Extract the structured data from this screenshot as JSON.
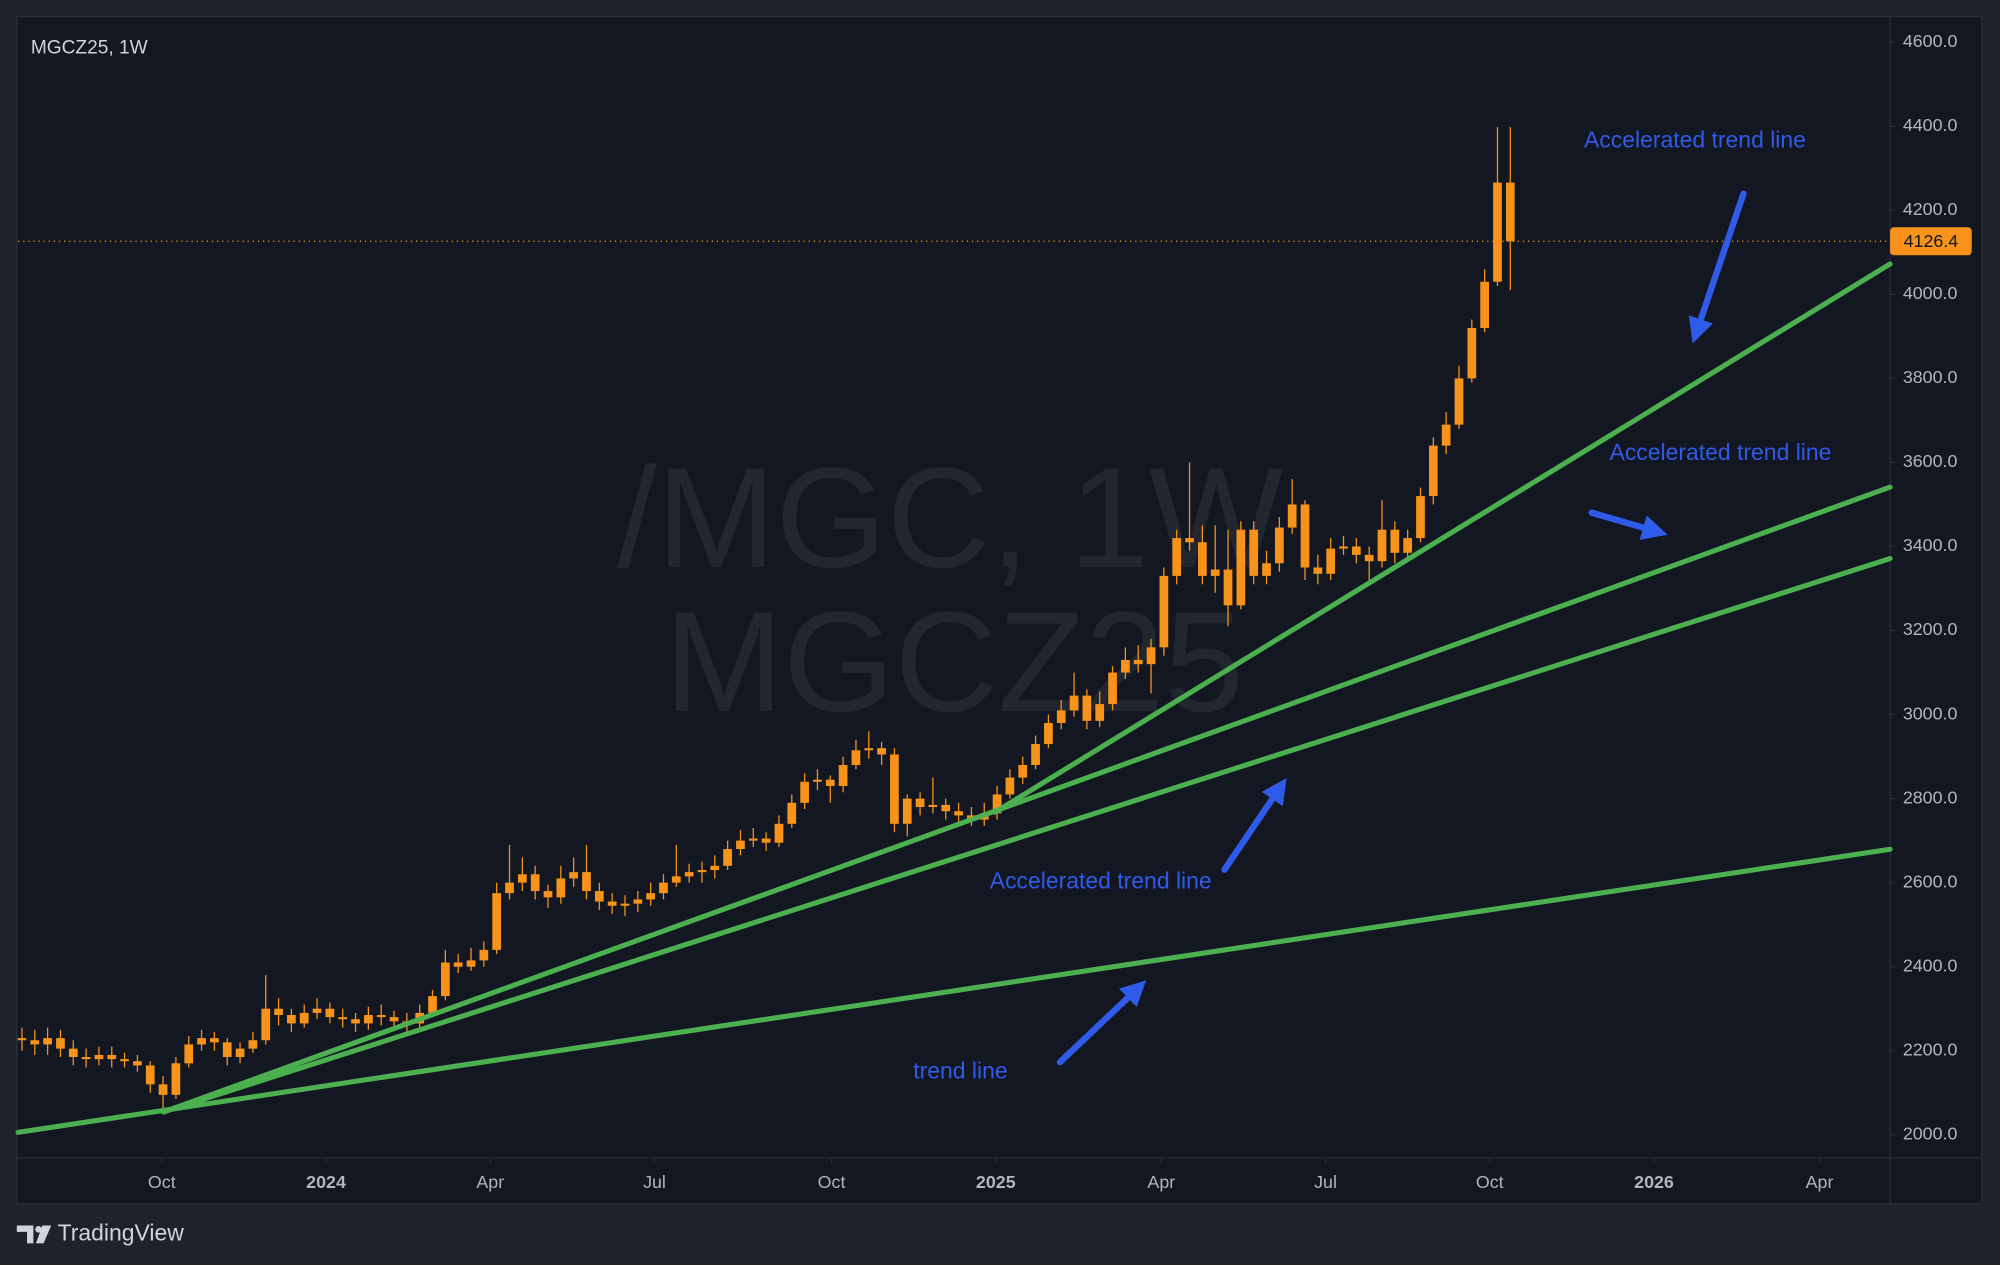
{
  "chart_data": {
    "type": "candlestick",
    "title": "MGCZ25, 1W",
    "watermark": [
      "/MGC, 1W",
      "MGCZ25"
    ],
    "color": "#f7931a",
    "open": [
      2230,
      2225,
      2215,
      2230,
      2205,
      2185,
      2180,
      2190,
      2180,
      2175,
      2165,
      2120,
      2095,
      2170,
      2215,
      2230,
      2220,
      2185,
      2205,
      2225,
      2300,
      2285,
      2265,
      2290,
      2300,
      2280,
      2275,
      2265,
      2285,
      2280,
      2270,
      2265,
      2290,
      2330,
      2410,
      2400,
      2415,
      2440,
      2575,
      2600,
      2620,
      2580,
      2565,
      2610,
      2625,
      2580,
      2555,
      2545,
      2550,
      2560,
      2575,
      2600,
      2615,
      2625,
      2630,
      2640,
      2680,
      2700,
      2705,
      2695,
      2740,
      2790,
      2840,
      2845,
      2830,
      2880,
      2915,
      2920,
      2905,
      2740,
      2800,
      2780,
      2785,
      2770,
      2760,
      2750,
      2765,
      2810,
      2850,
      2880,
      2930,
      2980,
      3010,
      3045,
      2985,
      3025,
      3100,
      3130,
      3120,
      3160,
      3330,
      3420,
      3410,
      3330,
      3345,
      3260,
      3440,
      3330,
      3360,
      3445,
      3500,
      3350,
      3335,
      3395,
      3400,
      3380,
      3365,
      3440,
      3385,
      3420,
      3520,
      3640,
      3690,
      3800,
      3920,
      4030,
      4266
    ],
    "high": [
      2255,
      2250,
      2255,
      2250,
      2225,
      2205,
      2210,
      2210,
      2195,
      2190,
      2175,
      2140,
      2185,
      2235,
      2250,
      2245,
      2230,
      2220,
      2245,
      2380,
      2325,
      2300,
      2310,
      2325,
      2315,
      2300,
      2290,
      2305,
      2310,
      2295,
      2290,
      2310,
      2345,
      2440,
      2430,
      2445,
      2460,
      2600,
      2690,
      2660,
      2640,
      2595,
      2640,
      2660,
      2690,
      2600,
      2575,
      2570,
      2580,
      2600,
      2620,
      2690,
      2645,
      2650,
      2665,
      2700,
      2725,
      2730,
      2720,
      2760,
      2810,
      2860,
      2870,
      2855,
      2900,
      2940,
      2960,
      2935,
      2920,
      2810,
      2815,
      2850,
      2800,
      2790,
      2780,
      2790,
      2830,
      2870,
      2900,
      2950,
      3000,
      3035,
      3100,
      3060,
      3055,
      3115,
      3160,
      3165,
      3180,
      3350,
      3440,
      3600,
      3450,
      3450,
      3440,
      3460,
      3460,
      3390,
      3470,
      3560,
      3510,
      3380,
      3420,
      3425,
      3420,
      3400,
      3510,
      3460,
      3440,
      3540,
      3660,
      3720,
      3830,
      3940,
      4060,
      4398,
      4398
    ],
    "low": [
      2200,
      2190,
      2190,
      2185,
      2165,
      2160,
      2165,
      2160,
      2160,
      2150,
      2100,
      2060,
      2085,
      2160,
      2200,
      2200,
      2165,
      2170,
      2195,
      2215,
      2260,
      2245,
      2255,
      2275,
      2265,
      2255,
      2245,
      2250,
      2260,
      2250,
      2240,
      2255,
      2280,
      2320,
      2385,
      2390,
      2400,
      2430,
      2560,
      2580,
      2560,
      2540,
      2550,
      2590,
      2560,
      2535,
      2525,
      2520,
      2530,
      2545,
      2560,
      2590,
      2600,
      2600,
      2610,
      2630,
      2665,
      2685,
      2675,
      2685,
      2730,
      2775,
      2820,
      2790,
      2815,
      2870,
      2895,
      2880,
      2720,
      2710,
      2760,
      2765,
      2750,
      2740,
      2735,
      2735,
      2750,
      2800,
      2835,
      2870,
      2920,
      2965,
      2995,
      2965,
      2970,
      3010,
      3085,
      3100,
      3050,
      3140,
      3310,
      3390,
      3310,
      3290,
      3210,
      3250,
      3310,
      3310,
      3340,
      3430,
      3320,
      3310,
      3320,
      3380,
      3360,
      3320,
      3350,
      3360,
      3370,
      3410,
      3500,
      3620,
      3680,
      3790,
      3910,
      4020,
      4010
    ],
    "close": [
      2225,
      2215,
      2230,
      2205,
      2185,
      2180,
      2190,
      2180,
      2175,
      2165,
      2120,
      2095,
      2170,
      2215,
      2230,
      2220,
      2185,
      2205,
      2225,
      2300,
      2285,
      2265,
      2290,
      2300,
      2280,
      2275,
      2265,
      2285,
      2280,
      2270,
      2265,
      2290,
      2330,
      2410,
      2400,
      2415,
      2440,
      2575,
      2600,
      2620,
      2580,
      2565,
      2610,
      2625,
      2580,
      2555,
      2545,
      2550,
      2560,
      2575,
      2600,
      2615,
      2625,
      2630,
      2640,
      2680,
      2700,
      2705,
      2695,
      2740,
      2790,
      2840,
      2845,
      2830,
      2880,
      2915,
      2920,
      2905,
      2740,
      2800,
      2780,
      2785,
      2770,
      2760,
      2750,
      2765,
      2810,
      2850,
      2880,
      2930,
      2980,
      3010,
      3045,
      2985,
      3025,
      3100,
      3130,
      3120,
      3160,
      3330,
      3420,
      3410,
      3330,
      3345,
      3260,
      3440,
      3330,
      3360,
      3445,
      3500,
      3350,
      3335,
      3395,
      3400,
      3380,
      3365,
      3440,
      3385,
      3420,
      3520,
      3640,
      3690,
      3800,
      3920,
      4030,
      4266,
      4126.4
    ],
    "xlim": [
      -0.3,
      145.6
    ],
    "xticks": [
      {
        "value": 10.9,
        "label": "Oct"
      },
      {
        "value": 23.7,
        "label": "2024"
      },
      {
        "value": 36.5,
        "label": "Apr"
      },
      {
        "value": 49.3,
        "label": "Jul"
      },
      {
        "value": 63.1,
        "label": "Oct"
      },
      {
        "value": 75.9,
        "label": "2025"
      },
      {
        "value": 88.8,
        "label": "Apr"
      },
      {
        "value": 101.6,
        "label": "Jul"
      },
      {
        "value": 114.4,
        "label": "Oct"
      },
      {
        "value": 127.2,
        "label": "2026"
      },
      {
        "value": 140.1,
        "label": "Apr"
      }
    ],
    "ylim": [
      1945,
      4658
    ],
    "yticks": [
      {
        "value": 2000,
        "label": "2000.0"
      },
      {
        "value": 2200,
        "label": "2200.0"
      },
      {
        "value": 2400,
        "label": "2400.0"
      },
      {
        "value": 2600,
        "label": "2600.0"
      },
      {
        "value": 2800,
        "label": "2800.0"
      },
      {
        "value": 3000,
        "label": "3000.0"
      },
      {
        "value": 3200,
        "label": "3200.0"
      },
      {
        "value": 3400,
        "label": "3400.0"
      },
      {
        "value": 3600,
        "label": "3600.0"
      },
      {
        "value": 3800,
        "label": "3800.0"
      },
      {
        "value": 4000,
        "label": "4000.0"
      },
      {
        "value": 4200,
        "label": "4200.0"
      },
      {
        "value": 4400,
        "label": "4400.0"
      },
      {
        "value": 4600,
        "label": "4600.0"
      }
    ],
    "grid": false,
    "annotations": [
      "Accelerated trend line",
      "Accelerated trend line",
      "Accelerated trend line",
      "trend line"
    ]
  },
  "footer": {
    "brand": "TradingView"
  }
}
